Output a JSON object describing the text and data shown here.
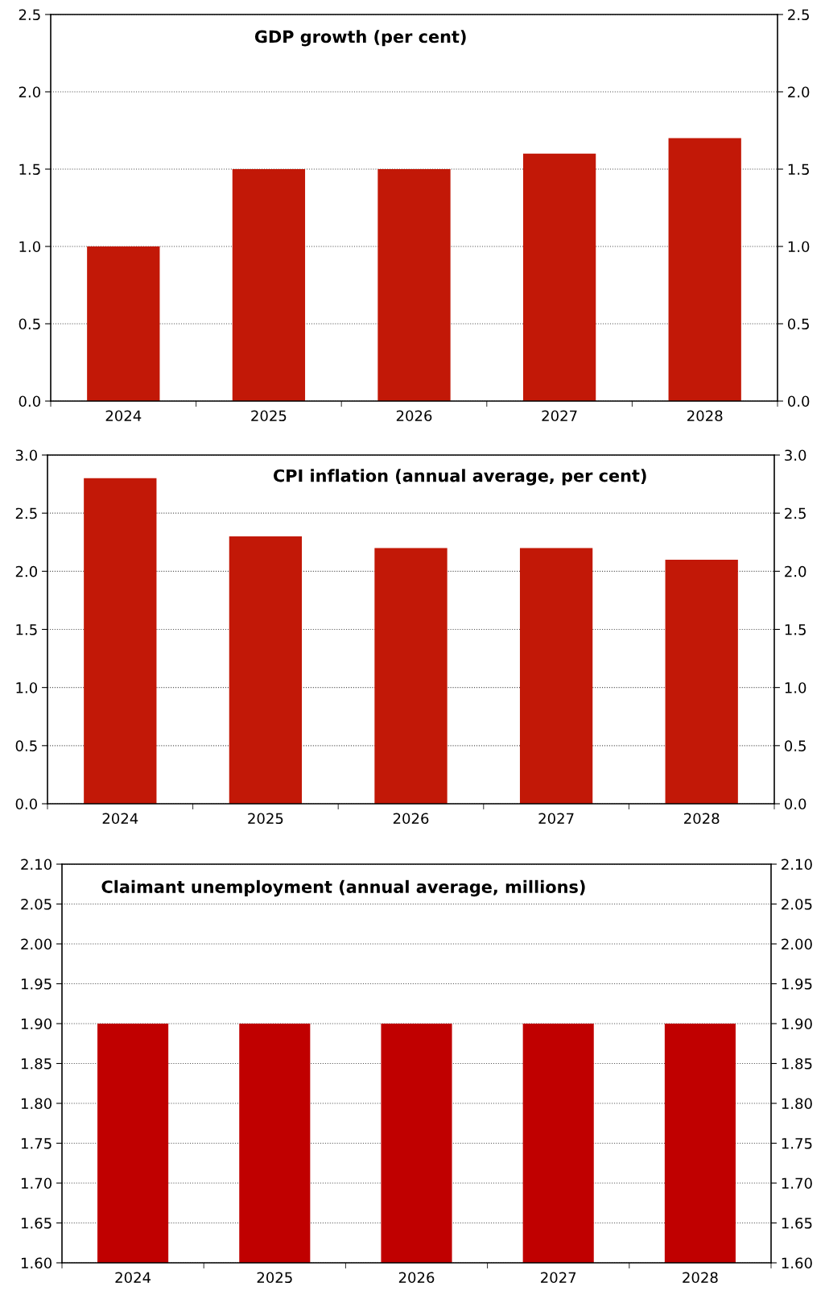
{
  "chart_data": [
    {
      "type": "bar",
      "title": "GDP growth (per cent)",
      "categories": [
        "2024",
        "2025",
        "2026",
        "2027",
        "2028"
      ],
      "values": [
        1.0,
        1.5,
        1.5,
        1.6,
        1.7
      ],
      "color": "#c21807",
      "ylim": [
        0,
        2.5
      ],
      "yticks": [
        {
          "value": 0,
          "label": "0.0"
        },
        {
          "value": 0.5,
          "label": "0.5"
        },
        {
          "value": 1,
          "label": "1.0"
        },
        {
          "value": 1.5,
          "label": "1.5"
        },
        {
          "value": 2,
          "label": "2.0"
        },
        {
          "value": 2.5,
          "label": "2.5"
        }
      ],
      "y2lim": [
        0,
        2.5
      ],
      "y2ticks": [
        {
          "value": 0,
          "label": "0.0"
        },
        {
          "value": 0.5,
          "label": "0.5"
        },
        {
          "value": 1,
          "label": "1.0"
        },
        {
          "value": 1.5,
          "label": "1.5"
        },
        {
          "value": 2,
          "label": "2.0"
        },
        {
          "value": 2.5,
          "label": "2.5"
        }
      ],
      "grid": "y"
    },
    {
      "type": "bar",
      "title": "CPI inflation (annual average, per cent)",
      "categories": [
        "2024",
        "2025",
        "2026",
        "2027",
        "2028"
      ],
      "values": [
        2.8,
        2.3,
        2.2,
        2.2,
        2.1
      ],
      "color": "#c21807",
      "ylim": [
        0,
        3
      ],
      "yticks": [
        {
          "value": 0,
          "label": "0.0"
        },
        {
          "value": 0.5,
          "label": "0.5"
        },
        {
          "value": 1,
          "label": "1.0"
        },
        {
          "value": 1.5,
          "label": "1.5"
        },
        {
          "value": 2,
          "label": "2.0"
        },
        {
          "value": 2.5,
          "label": "2.5"
        },
        {
          "value": 3,
          "label": "3.0"
        }
      ],
      "y2lim": [
        0,
        3
      ],
      "y2ticks": [
        {
          "value": 0,
          "label": "0.0"
        },
        {
          "value": 0.5,
          "label": "0.5"
        },
        {
          "value": 1,
          "label": "1.0"
        },
        {
          "value": 1.5,
          "label": "1.5"
        },
        {
          "value": 2,
          "label": "2.0"
        },
        {
          "value": 2.5,
          "label": "2.5"
        },
        {
          "value": 3,
          "label": "3.0"
        }
      ],
      "grid": "y"
    },
    {
      "type": "bar",
      "title": "Claimant unemployment (annual average, millions)",
      "categories": [
        "2024",
        "2025",
        "2026",
        "2027",
        "2028"
      ],
      "values": [
        1.9,
        1.9,
        1.9,
        1.9,
        1.9
      ],
      "color": "#c00000",
      "ylim": [
        1.6,
        2.1
      ],
      "yticks": [
        {
          "value": 1.6,
          "label": "1.60"
        },
        {
          "value": 1.65,
          "label": "1.65"
        },
        {
          "value": 1.7,
          "label": "1.70"
        },
        {
          "value": 1.75,
          "label": "1.75"
        },
        {
          "value": 1.8,
          "label": "1.80"
        },
        {
          "value": 1.85,
          "label": "1.85"
        },
        {
          "value": 1.9,
          "label": "1.90"
        },
        {
          "value": 1.95,
          "label": "1.95"
        },
        {
          "value": 2.0,
          "label": "2.00"
        },
        {
          "value": 2.05,
          "label": "2.05"
        },
        {
          "value": 2.1,
          "label": "2.10"
        }
      ],
      "y2lim": [
        1.6,
        2.1
      ],
      "y2ticks": [
        {
          "value": 1.6,
          "label": "1.60"
        },
        {
          "value": 1.65,
          "label": "1.65"
        },
        {
          "value": 1.7,
          "label": "1.70"
        },
        {
          "value": 1.75,
          "label": "1.75"
        },
        {
          "value": 1.8,
          "label": "1.80"
        },
        {
          "value": 1.85,
          "label": "1.85"
        },
        {
          "value": 1.9,
          "label": "1.90"
        },
        {
          "value": 1.95,
          "label": "1.95"
        },
        {
          "value": 2.0,
          "label": "2.00"
        },
        {
          "value": 2.05,
          "label": "2.05"
        },
        {
          "value": 2.1,
          "label": "2.10"
        }
      ],
      "grid": "y"
    }
  ]
}
